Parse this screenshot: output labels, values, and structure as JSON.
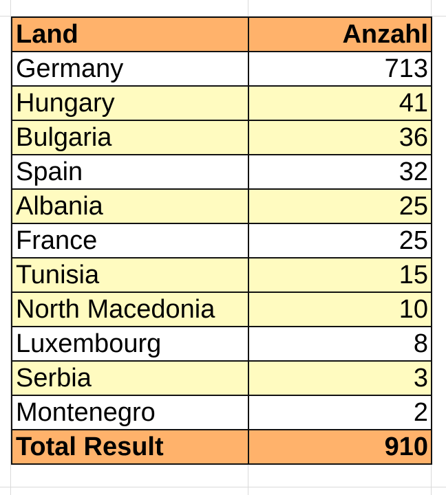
{
  "table": {
    "header": {
      "land": "Land",
      "count": "Anzahl"
    },
    "rows": [
      {
        "land": "Germany",
        "count": "713",
        "highlight": false
      },
      {
        "land": "Hungary",
        "count": "41",
        "highlight": true
      },
      {
        "land": "Bulgaria",
        "count": "36",
        "highlight": true
      },
      {
        "land": "Spain",
        "count": "32",
        "highlight": false
      },
      {
        "land": "Albania",
        "count": "25",
        "highlight": true
      },
      {
        "land": "France",
        "count": "25",
        "highlight": false
      },
      {
        "land": "Tunisia",
        "count": "15",
        "highlight": true
      },
      {
        "land": "North Macedonia",
        "count": "10",
        "highlight": true
      },
      {
        "land": "Luxembourg",
        "count": "8",
        "highlight": false
      },
      {
        "land": "Serbia",
        "count": "3",
        "highlight": true
      },
      {
        "land": "Montenegro",
        "count": "2",
        "highlight": false
      }
    ],
    "total": {
      "land": "Total Result",
      "count": "910"
    }
  },
  "colors": {
    "header_fill": "#ffb26b",
    "highlight_fill": "#fffbc0",
    "plain_fill": "#ffffff",
    "grid": "#d9d9d9"
  }
}
